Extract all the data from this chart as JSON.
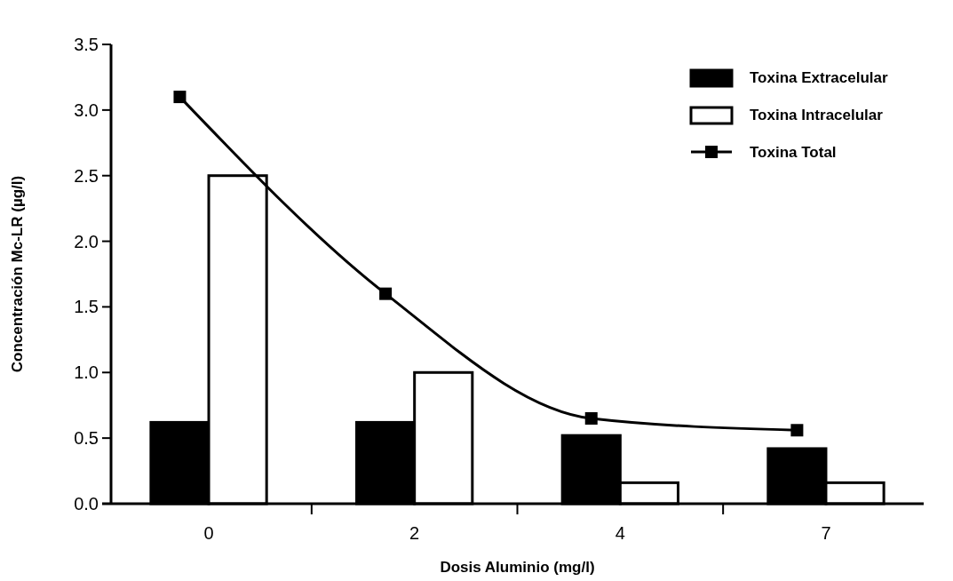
{
  "chart_data": {
    "type": "bar",
    "xlabel": "Dosis Aluminio (mg/l)",
    "ylabel": "Concentración Mc-LR (µg/l)",
    "categories": [
      "0",
      "2",
      "4",
      "7"
    ],
    "series": [
      {
        "name": "Toxina Extracelular",
        "color": "#000000",
        "values": [
          0.62,
          0.62,
          0.52,
          0.42
        ]
      },
      {
        "name": "Toxina Intracelular",
        "color": "#ffffff",
        "values": [
          2.5,
          1.0,
          0.16,
          0.16
        ]
      },
      {
        "name": "Toxina Total",
        "type": "line",
        "color": "#000000",
        "marker": "square",
        "values": [
          3.1,
          1.6,
          0.65,
          0.56
        ]
      }
    ],
    "ylim": [
      0,
      3.5
    ],
    "yticks": [
      {
        "value": 0,
        "label": "0.0"
      },
      0.5,
      {
        "value": 1,
        "label": "1.0"
      },
      1.5,
      {
        "value": 2,
        "label": "2.0"
      },
      2.5,
      {
        "value": 3,
        "label": "3.0"
      },
      3.5
    ],
    "legend": "top right",
    "grid": false
  }
}
